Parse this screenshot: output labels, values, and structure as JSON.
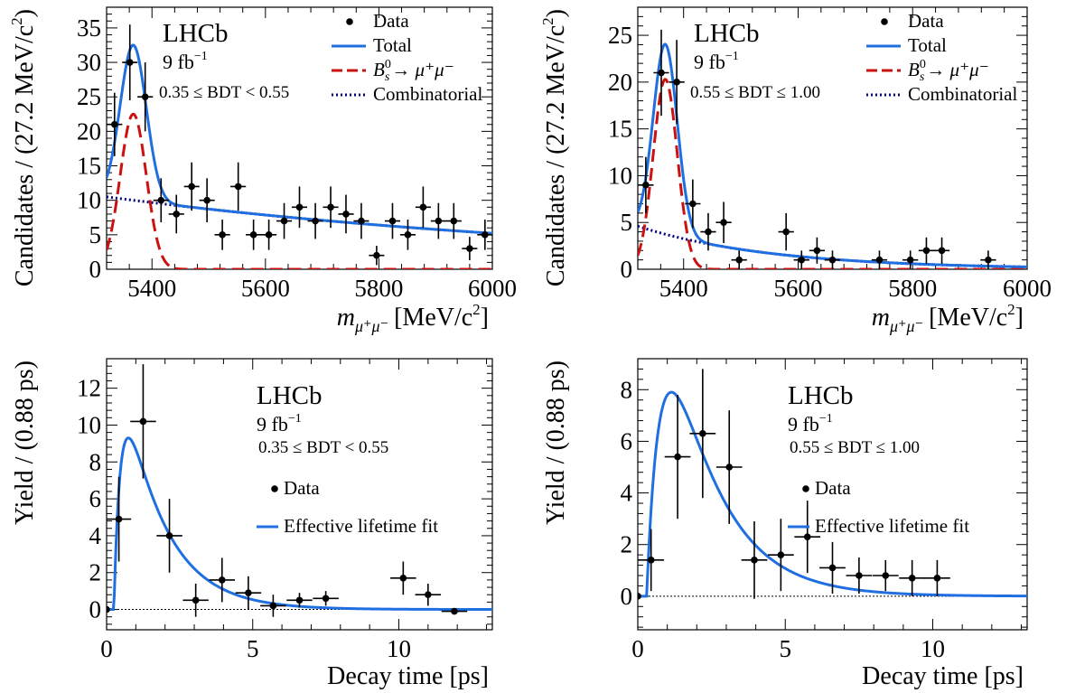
{
  "colors": {
    "data": "#000000",
    "total": "#1f6fe0",
    "signal": "#cc1111",
    "combinatorial": "#000080",
    "lifetime_fit": "#1f6fe0"
  },
  "chart_data": [
    {
      "type": "scatter",
      "panel": "top-left",
      "experiment": "LHCb",
      "luminosity": "9 fb",
      "luminosity_unit_exp": "−1",
      "selection": "0.35 ≤ BDT < 0.55",
      "xlabel": "m",
      "xlabel_sub": "μ⁺μ⁻",
      "xlabel_unit": "[MeV/c",
      "xlabel_unit_exp": "2",
      "xlabel_unit_close": "]",
      "ylabel": "Candidates / (27.2 MeV/c",
      "ylabel_exp": "2",
      "ylabel_close": ")",
      "xlim": [
        5320,
        6000
      ],
      "ylim": [
        0,
        38
      ],
      "xticks": [
        5400,
        5600,
        5800,
        6000
      ],
      "yticks": [
        0,
        5,
        10,
        15,
        20,
        25,
        30,
        35
      ],
      "legend_position": "top-right",
      "legend": [
        {
          "label": "Data",
          "style": "marker"
        },
        {
          "label": "Total",
          "style": "solid"
        },
        {
          "label": "B",
          "sub": "s",
          "sup": "0",
          "rest": "→ μ⁺μ⁻",
          "style": "dashed"
        },
        {
          "label": "Combinatorial",
          "style": "dotted"
        }
      ],
      "data": [
        {
          "x": 5334,
          "y": 21,
          "err": 4.6
        },
        {
          "x": 5361,
          "y": 30,
          "err": 5.5
        },
        {
          "x": 5388,
          "y": 25,
          "err": 5.0
        },
        {
          "x": 5416,
          "y": 10,
          "err": 3.2
        },
        {
          "x": 5443,
          "y": 8,
          "err": 2.8
        },
        {
          "x": 5470,
          "y": 12,
          "err": 3.5
        },
        {
          "x": 5497,
          "y": 10,
          "err": 3.2
        },
        {
          "x": 5524,
          "y": 5,
          "err": 2.2
        },
        {
          "x": 5552,
          "y": 12,
          "err": 3.5
        },
        {
          "x": 5579,
          "y": 5,
          "err": 2.2
        },
        {
          "x": 5606,
          "y": 5,
          "err": 2.2
        },
        {
          "x": 5633,
          "y": 7,
          "err": 2.6
        },
        {
          "x": 5660,
          "y": 9,
          "err": 3.0
        },
        {
          "x": 5688,
          "y": 7,
          "err": 2.6
        },
        {
          "x": 5715,
          "y": 9,
          "err": 3.0
        },
        {
          "x": 5742,
          "y": 8,
          "err": 2.8
        },
        {
          "x": 5769,
          "y": 7,
          "err": 2.6
        },
        {
          "x": 5796,
          "y": 2,
          "err": 1.4
        },
        {
          "x": 5824,
          "y": 7,
          "err": 2.6
        },
        {
          "x": 5851,
          "y": 5,
          "err": 2.2
        },
        {
          "x": 5878,
          "y": 9,
          "err": 3.0
        },
        {
          "x": 5905,
          "y": 7,
          "err": 2.6
        },
        {
          "x": 5932,
          "y": 7,
          "err": 2.6
        },
        {
          "x": 5960,
          "y": 3,
          "err": 1.7
        },
        {
          "x": 5987,
          "y": 5,
          "err": 2.2
        }
      ],
      "x_bin_halfwidth": 13.6,
      "model": {
        "signal": {
          "mean": 5367,
          "sigma": 23,
          "peak": 22.5
        },
        "combinatorial": {
          "a": 10.5,
          "slope_per_mev": 0.00103
        }
      }
    },
    {
      "type": "scatter",
      "panel": "top-right",
      "experiment": "LHCb",
      "luminosity": "9 fb",
      "luminosity_unit_exp": "−1",
      "selection": "0.55 ≤ BDT ≤ 1.00",
      "xlabel": "m",
      "xlabel_sub": "μ⁺μ⁻",
      "xlabel_unit": "[MeV/c",
      "xlabel_unit_exp": "2",
      "xlabel_unit_close": "]",
      "ylabel": "Candidates / (27.2 MeV/c",
      "ylabel_exp": "2",
      "ylabel_close": ")",
      "xlim": [
        5320,
        6000
      ],
      "ylim": [
        0,
        28
      ],
      "xticks": [
        5400,
        5600,
        5800,
        6000
      ],
      "yticks": [
        0,
        5,
        10,
        15,
        20,
        25
      ],
      "legend_position": "top-right",
      "legend": [
        {
          "label": "Data",
          "style": "marker"
        },
        {
          "label": "Total",
          "style": "solid"
        },
        {
          "label": "B",
          "sub": "s",
          "sup": "0",
          "rest": "→ μ⁺μ⁻",
          "style": "dashed"
        },
        {
          "label": "Combinatorial",
          "style": "dotted"
        }
      ],
      "data": [
        {
          "x": 5334,
          "y": 9,
          "err": 3.0
        },
        {
          "x": 5361,
          "y": 21,
          "err": 4.6
        },
        {
          "x": 5388,
          "y": 20,
          "err": 4.5
        },
        {
          "x": 5416,
          "y": 7,
          "err": 2.6
        },
        {
          "x": 5443,
          "y": 4,
          "err": 2.0
        },
        {
          "x": 5470,
          "y": 5,
          "err": 2.2
        },
        {
          "x": 5497,
          "y": 1,
          "err": 1.0
        },
        {
          "x": 5579,
          "y": 4,
          "err": 2.0
        },
        {
          "x": 5606,
          "y": 1,
          "err": 1.0
        },
        {
          "x": 5633,
          "y": 2,
          "err": 1.4
        },
        {
          "x": 5660,
          "y": 1,
          "err": 1.0
        },
        {
          "x": 5742,
          "y": 1,
          "err": 1.0
        },
        {
          "x": 5796,
          "y": 1,
          "err": 1.0
        },
        {
          "x": 5824,
          "y": 2,
          "err": 1.4
        },
        {
          "x": 5851,
          "y": 2,
          "err": 1.4
        },
        {
          "x": 5932,
          "y": 1,
          "err": 1.0
        }
      ],
      "x_bin_halfwidth": 13.6,
      "model": {
        "signal": {
          "mean": 5368,
          "sigma": 21,
          "peak": 20.3
        },
        "combinatorial": {
          "a": 4.6,
          "slope_per_mev": 0.0043
        }
      }
    },
    {
      "type": "scatter",
      "panel": "bottom-left",
      "experiment": "LHCb",
      "luminosity": "9 fb",
      "luminosity_unit_exp": "−1",
      "selection": "0.35 ≤ BDT < 0.55",
      "xlabel": "Decay time [ps]",
      "ylabel": "Yield / (0.88 ps)",
      "xlim": [
        0,
        13.2
      ],
      "ylim": [
        -1.1,
        13.6
      ],
      "xticks": [
        0,
        5,
        10
      ],
      "yticks": [
        0,
        2,
        4,
        6,
        8,
        10,
        12
      ],
      "legend_position": "middle-right",
      "legend": [
        {
          "label": "Data",
          "style": "marker"
        },
        {
          "label": "Effective lifetime fit",
          "style": "solid"
        }
      ],
      "data": [
        {
          "x": 0.0,
          "y": 0.0,
          "err": 0.0,
          "xerr": 0.0
        },
        {
          "x": 0.42,
          "y": 4.9,
          "err": 2.3,
          "xerr": 0.42
        },
        {
          "x": 1.25,
          "y": 10.2,
          "err": 3.1,
          "xerr": 0.44
        },
        {
          "x": 2.15,
          "y": 4.0,
          "err": 2.0,
          "xerr": 0.44
        },
        {
          "x": 3.05,
          "y": 0.5,
          "err": 0.9,
          "xerr": 0.44
        },
        {
          "x": 3.95,
          "y": 1.6,
          "err": 1.2,
          "xerr": 0.44
        },
        {
          "x": 4.85,
          "y": 0.9,
          "err": 0.9,
          "xerr": 0.44
        },
        {
          "x": 5.7,
          "y": 0.2,
          "err": 0.6,
          "xerr": 0.44
        },
        {
          "x": 6.6,
          "y": 0.5,
          "err": 0.4,
          "xerr": 0.44
        },
        {
          "x": 7.5,
          "y": 0.6,
          "err": 0.4,
          "xerr": 0.44
        },
        {
          "x": 10.15,
          "y": 1.7,
          "err": 0.9,
          "xerr": 0.44
        },
        {
          "x": 11.0,
          "y": 0.8,
          "err": 0.6,
          "xerr": 0.44
        },
        {
          "x": 11.9,
          "y": -0.1,
          "err": 0.1,
          "xerr": 0.44
        }
      ],
      "model": {
        "tau": 1.4,
        "t0": 0.25,
        "rise": 0.6,
        "scale": 9.3
      }
    },
    {
      "type": "scatter",
      "panel": "bottom-right",
      "experiment": "LHCb",
      "luminosity": "9 fb",
      "luminosity_unit_exp": "−1",
      "selection": "0.55 ≤ BDT ≤ 1.00",
      "xlabel": "Decay time [ps]",
      "ylabel": "Yield / (0.88 ps)",
      "xlim": [
        0,
        13.2
      ],
      "ylim": [
        -1.3,
        9.2
      ],
      "xticks": [
        0,
        5,
        10
      ],
      "yticks": [
        0,
        2,
        4,
        6,
        8
      ],
      "legend_position": "middle-right",
      "legend": [
        {
          "label": "Data",
          "style": "marker"
        },
        {
          "label": "Effective lifetime fit",
          "style": "solid"
        }
      ],
      "data": [
        {
          "x": 0.0,
          "y": 0.0,
          "err": 0.0,
          "xerr": 0.0
        },
        {
          "x": 0.45,
          "y": 1.4,
          "err": 1.2,
          "xerr": 0.44
        },
        {
          "x": 1.35,
          "y": 5.4,
          "err": 2.4,
          "xerr": 0.44
        },
        {
          "x": 2.2,
          "y": 6.3,
          "err": 2.5,
          "xerr": 0.44
        },
        {
          "x": 3.1,
          "y": 5.0,
          "err": 2.2,
          "xerr": 0.44
        },
        {
          "x": 3.95,
          "y": 1.4,
          "err": 1.5,
          "xerr": 0.44
        },
        {
          "x": 4.85,
          "y": 1.6,
          "err": 1.4,
          "xerr": 0.44
        },
        {
          "x": 5.75,
          "y": 2.3,
          "err": 1.4,
          "xerr": 0.44
        },
        {
          "x": 6.6,
          "y": 1.1,
          "err": 1.0,
          "xerr": 0.44
        },
        {
          "x": 7.5,
          "y": 0.8,
          "err": 0.7,
          "xerr": 0.44
        },
        {
          "x": 8.4,
          "y": 0.8,
          "err": 0.6,
          "xerr": 0.44
        },
        {
          "x": 9.3,
          "y": 0.7,
          "err": 0.7,
          "xerr": 0.44
        },
        {
          "x": 10.15,
          "y": 0.7,
          "err": 0.7,
          "xerr": 0.44
        }
      ],
      "model": {
        "tau": 1.65,
        "t0": 0.3,
        "rise": 1.5,
        "scale": 7.9
      }
    }
  ]
}
